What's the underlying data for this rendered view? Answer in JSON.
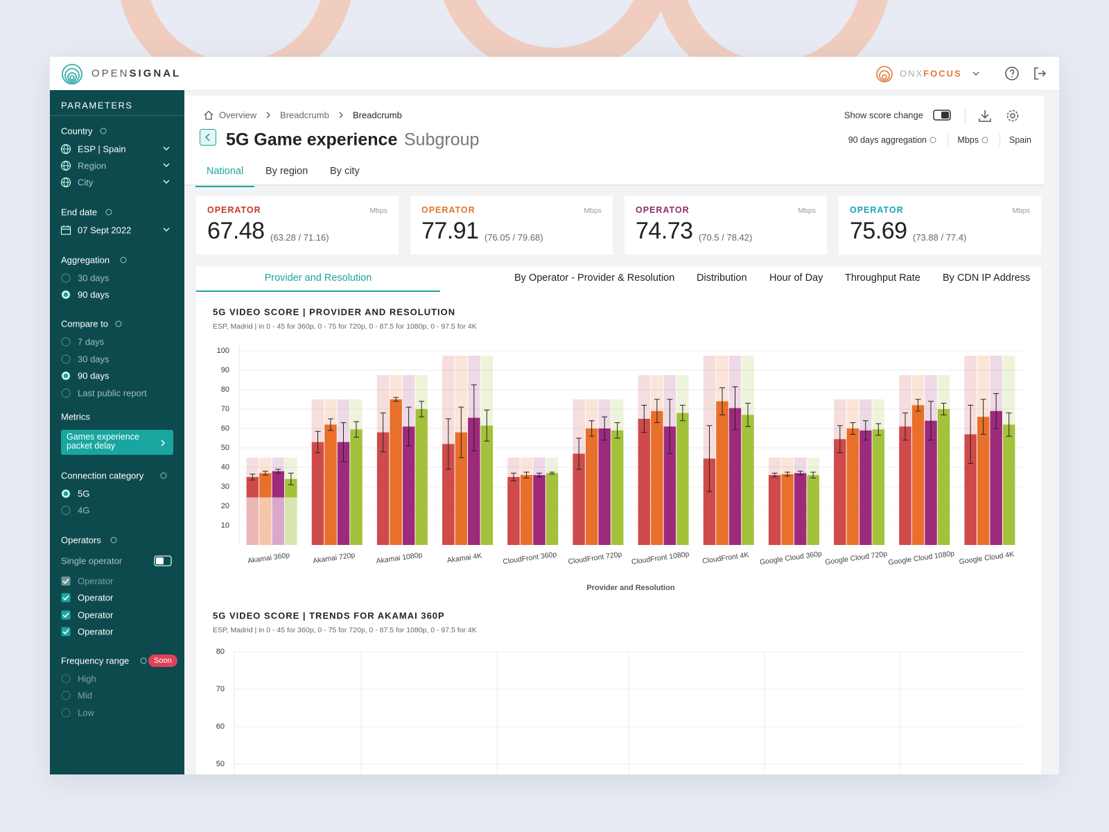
{
  "header": {
    "brand_light": "OPEN",
    "brand_bold": "SIGNAL",
    "product_light": "ONX",
    "product_bold": "FOCUS"
  },
  "sidebar": {
    "title": "PARAMETERS",
    "country": {
      "label": "Country",
      "selects": [
        "ESP | Spain",
        "Region",
        "City"
      ]
    },
    "end_date": {
      "label": "End date",
      "value": "07 Sept 2022"
    },
    "aggregation": {
      "label": "Aggregation",
      "options": [
        "30 days",
        "90 days"
      ],
      "selected": 1
    },
    "compare_to": {
      "label": "Compare to",
      "options": [
        "7 days",
        "30 days",
        "90 days",
        "Last public report"
      ],
      "selected": 2
    },
    "metrics": {
      "label": "Metrics",
      "button": "Games experience packet delay"
    },
    "connection_category": {
      "label": "Connection category",
      "options": [
        "5G",
        "4G"
      ],
      "selected": 0
    },
    "operators": {
      "label": "Operators",
      "single_operator": "Single operator",
      "options": [
        "Operator",
        "Operator",
        "Operator",
        "Operator"
      ],
      "disabled": 0
    },
    "frequency_range": {
      "label": "Frequency range",
      "badge": "Soon",
      "options": [
        "High",
        "Mid",
        "Low"
      ]
    }
  },
  "page": {
    "breadcrumbs": [
      "Overview",
      "Breadcrumb",
      "Breadcrumb"
    ],
    "title": "5G Game experience",
    "subtitle": "Subgroup",
    "show_score_change": "Show score change",
    "meta": [
      "90 days aggregation",
      "Mbps",
      "Spain"
    ],
    "tabs": [
      "National",
      "By region",
      "By city"
    ],
    "active_tab": 0
  },
  "kpis": [
    {
      "label": "OPERATOR",
      "unit": "Mbps",
      "value": 67.48,
      "range": "(63.28 / 71.16)",
      "color": "#c8372d"
    },
    {
      "label": "OPERATOR",
      "unit": "Mbps",
      "value": 77.91,
      "range": "(76.05 / 79.68)",
      "color": "#e0752c"
    },
    {
      "label": "OPERATOR",
      "unit": "Mbps",
      "value": 74.73,
      "range": "(70.5 / 78.42)",
      "color": "#8e2a6e"
    },
    {
      "label": "OPERATOR",
      "unit": "Mbps",
      "value": 75.69,
      "range": "(73.88 / 77.4)",
      "color": "#1aa3b8"
    }
  ],
  "chart_tabs": {
    "tabs": [
      "Provider and Resolution",
      "By Operator - Provider & Resolution",
      "Distribution",
      "Hour of Day",
      "Throughput Rate",
      "By CDN IP Address"
    ],
    "active": 0
  },
  "chart_data": [
    {
      "type": "bar",
      "title": "5G VIDEO SCORE | PROVIDER AND RESOLUTION",
      "subtitle": "ESP, Madrid | in 0 - 45 for 360p, 0 - 75 for 720p, 0 - 87.5 for 1080p, 0 - 97.5 for 4K",
      "xlabel": "Provider and Resolution",
      "categories": [
        "Akamai 360p",
        "Akamai 720p",
        "Akamai 1080p",
        "Akamai 4K",
        "CloudFront 360p",
        "CloudFront 720p",
        "CloudFront 1080p",
        "CloudFront 4K",
        "Google Cloud 360p",
        "Google Cloud 720p",
        "Google Cloud 1080p",
        "Google Cloud 4K"
      ],
      "range_max": [
        45,
        75,
        87.5,
        97.5,
        45,
        75,
        87.5,
        97.5,
        45,
        75,
        87.5,
        97.5
      ],
      "series": [
        {
          "color": "#cf4a4a",
          "values": [
            35,
            53,
            58,
            52,
            35,
            47,
            65,
            44.5,
            36,
            54.5,
            61,
            57
          ],
          "errors": [
            1.5,
            5.5,
            10,
            13,
            2,
            8,
            7,
            17,
            1,
            7,
            7,
            15
          ]
        },
        {
          "color": "#e8702a",
          "values": [
            37,
            62,
            75,
            58,
            36,
            60,
            69,
            74,
            36.5,
            60,
            72,
            66
          ],
          "errors": [
            1,
            3,
            1,
            13,
            1.5,
            4,
            6,
            7,
            1,
            3,
            3,
            9
          ]
        },
        {
          "color": "#9e2a7c",
          "values": [
            38,
            53,
            61,
            65.5,
            36,
            60,
            61,
            70.5,
            37,
            59,
            64,
            69
          ],
          "errors": [
            1,
            10,
            10,
            17,
            1,
            6,
            14,
            11,
            1,
            5,
            10,
            9
          ]
        },
        {
          "color": "#a3c13a",
          "values": [
            34,
            59.5,
            70,
            61.5,
            37,
            59,
            68,
            67,
            36,
            59.5,
            70,
            62
          ],
          "errors": [
            3,
            4,
            4,
            8,
            0.5,
            4,
            4,
            6,
            1.5,
            3,
            3,
            6
          ]
        }
      ],
      "ylim": [
        0,
        100
      ],
      "yticks": [
        10,
        20,
        30,
        40,
        50,
        60,
        70,
        80,
        90,
        100
      ],
      "grid": true
    },
    {
      "type": "line",
      "title": "5G VIDEO SCORE | TRENDS FOR AKAMAI 360P",
      "subtitle": "ESP, Madrid | in 0 - 45 for 360p, 0 - 75 for 720p, 0 - 87.5 for 1080p, 0 - 97.5 for 4K",
      "series": [],
      "ylim": [
        50,
        80
      ],
      "yticks": [
        50,
        60,
        70,
        80
      ],
      "grid": true
    }
  ]
}
